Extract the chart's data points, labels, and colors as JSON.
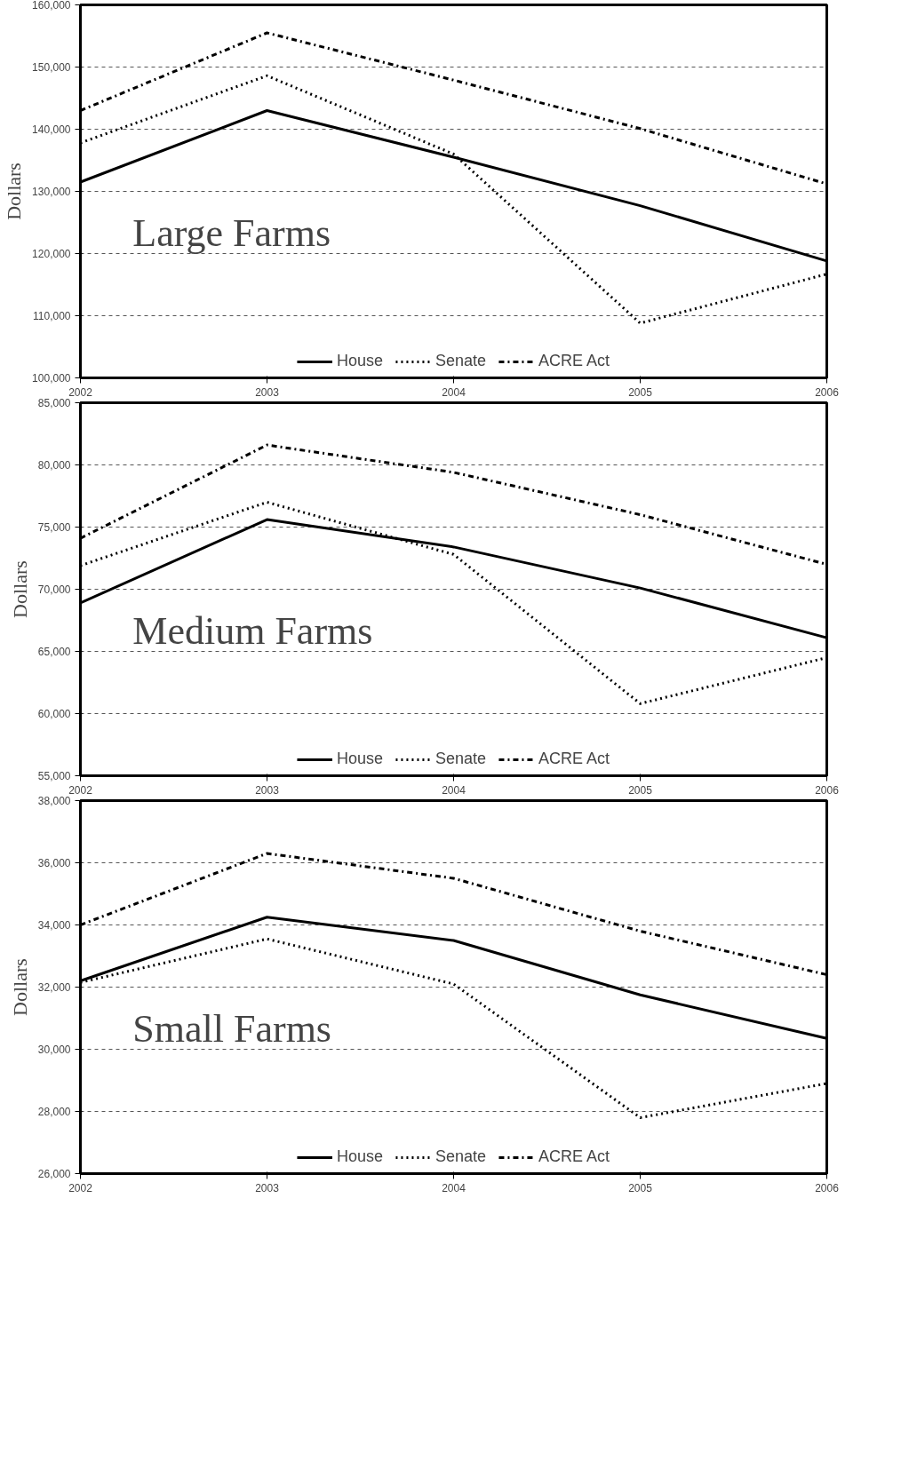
{
  "chart_data": [
    {
      "type": "line",
      "ylabel": "Dollars",
      "annotations": [
        "Large Farms"
      ],
      "x": [
        2002,
        2003,
        2004,
        2005,
        2006
      ],
      "xlim": [
        2002,
        2006
      ],
      "xticks": [
        2002,
        2003,
        2004,
        2005,
        2006
      ],
      "ylim": [
        100000,
        160000
      ],
      "yticks": [
        {
          "value": 100000,
          "label": "100,000"
        },
        {
          "value": 110000,
          "label": "110,000"
        },
        {
          "value": 120000,
          "label": "120,000"
        },
        {
          "value": 130000,
          "label": "130,000"
        },
        {
          "value": 140000,
          "label": "140,000"
        },
        {
          "value": 150000,
          "label": "150,000"
        },
        {
          "value": 160000,
          "label": "160,000"
        }
      ],
      "grid": "y",
      "legend": "bottom",
      "marker": "none",
      "series": [
        {
          "name": "House",
          "color": "#000000",
          "line_style": "solid",
          "values": [
            131500,
            143000,
            135500,
            127700,
            118800
          ]
        },
        {
          "name": "Senate",
          "color": "#000000",
          "line_style": "dotted",
          "values": [
            137800,
            148600,
            136000,
            108800,
            116700
          ]
        },
        {
          "name": "ACRE Act",
          "color": "#000000",
          "line_style": "dashdot",
          "values": [
            143000,
            155500,
            147900,
            140100,
            131200
          ]
        }
      ]
    },
    {
      "type": "line",
      "ylabel": "Dollars",
      "annotations": [
        "Medium Farms"
      ],
      "x": [
        2002,
        2003,
        2004,
        2005,
        2006
      ],
      "xlim": [
        2002,
        2006
      ],
      "xticks": [
        2002,
        2003,
        2004,
        2005,
        2006
      ],
      "ylim": [
        55000,
        85000
      ],
      "yticks": [
        {
          "value": 55000,
          "label": "55,000"
        },
        {
          "value": 60000,
          "label": "60,000"
        },
        {
          "value": 65000,
          "label": "65,000"
        },
        {
          "value": 70000,
          "label": "70,000"
        },
        {
          "value": 75000,
          "label": "75,000"
        },
        {
          "value": 80000,
          "label": "80,000"
        },
        {
          "value": 85000,
          "label": "85,000"
        }
      ],
      "grid": "y",
      "legend": "bottom",
      "marker": "none",
      "series": [
        {
          "name": "House",
          "color": "#000000",
          "line_style": "solid",
          "values": [
            68900,
            75600,
            73400,
            70100,
            66100
          ]
        },
        {
          "name": "Senate",
          "color": "#000000",
          "line_style": "dotted",
          "values": [
            71900,
            77000,
            72800,
            60800,
            64500
          ]
        },
        {
          "name": "ACRE Act",
          "color": "#000000",
          "line_style": "dashdot",
          "values": [
            74100,
            81600,
            79400,
            76000,
            72000
          ]
        }
      ]
    },
    {
      "type": "line",
      "ylabel": "Dollars",
      "annotations": [
        "Small Farms"
      ],
      "x": [
        2002,
        2003,
        2004,
        2005,
        2006
      ],
      "xlim": [
        2002,
        2006
      ],
      "xticks": [
        2002,
        2003,
        2004,
        2005,
        2006
      ],
      "ylim": [
        26000,
        38000
      ],
      "yticks": [
        {
          "value": 26000,
          "label": "26,000"
        },
        {
          "value": 28000,
          "label": "28,000"
        },
        {
          "value": 30000,
          "label": "30,000"
        },
        {
          "value": 32000,
          "label": "32,000"
        },
        {
          "value": 34000,
          "label": "34,000"
        },
        {
          "value": 36000,
          "label": "36,000"
        },
        {
          "value": 38000,
          "label": "38,000"
        }
      ],
      "grid": "y",
      "legend": "bottom",
      "marker": "none",
      "series": [
        {
          "name": "House",
          "color": "#000000",
          "line_style": "solid",
          "values": [
            32200,
            34250,
            33500,
            31750,
            30350
          ]
        },
        {
          "name": "Senate",
          "color": "#000000",
          "line_style": "dotted",
          "values": [
            32150,
            33550,
            32100,
            27800,
            28900
          ]
        },
        {
          "name": "ACRE Act",
          "color": "#000000",
          "line_style": "dashdot",
          "values": [
            34000,
            36300,
            35500,
            33800,
            32400
          ]
        }
      ]
    }
  ]
}
